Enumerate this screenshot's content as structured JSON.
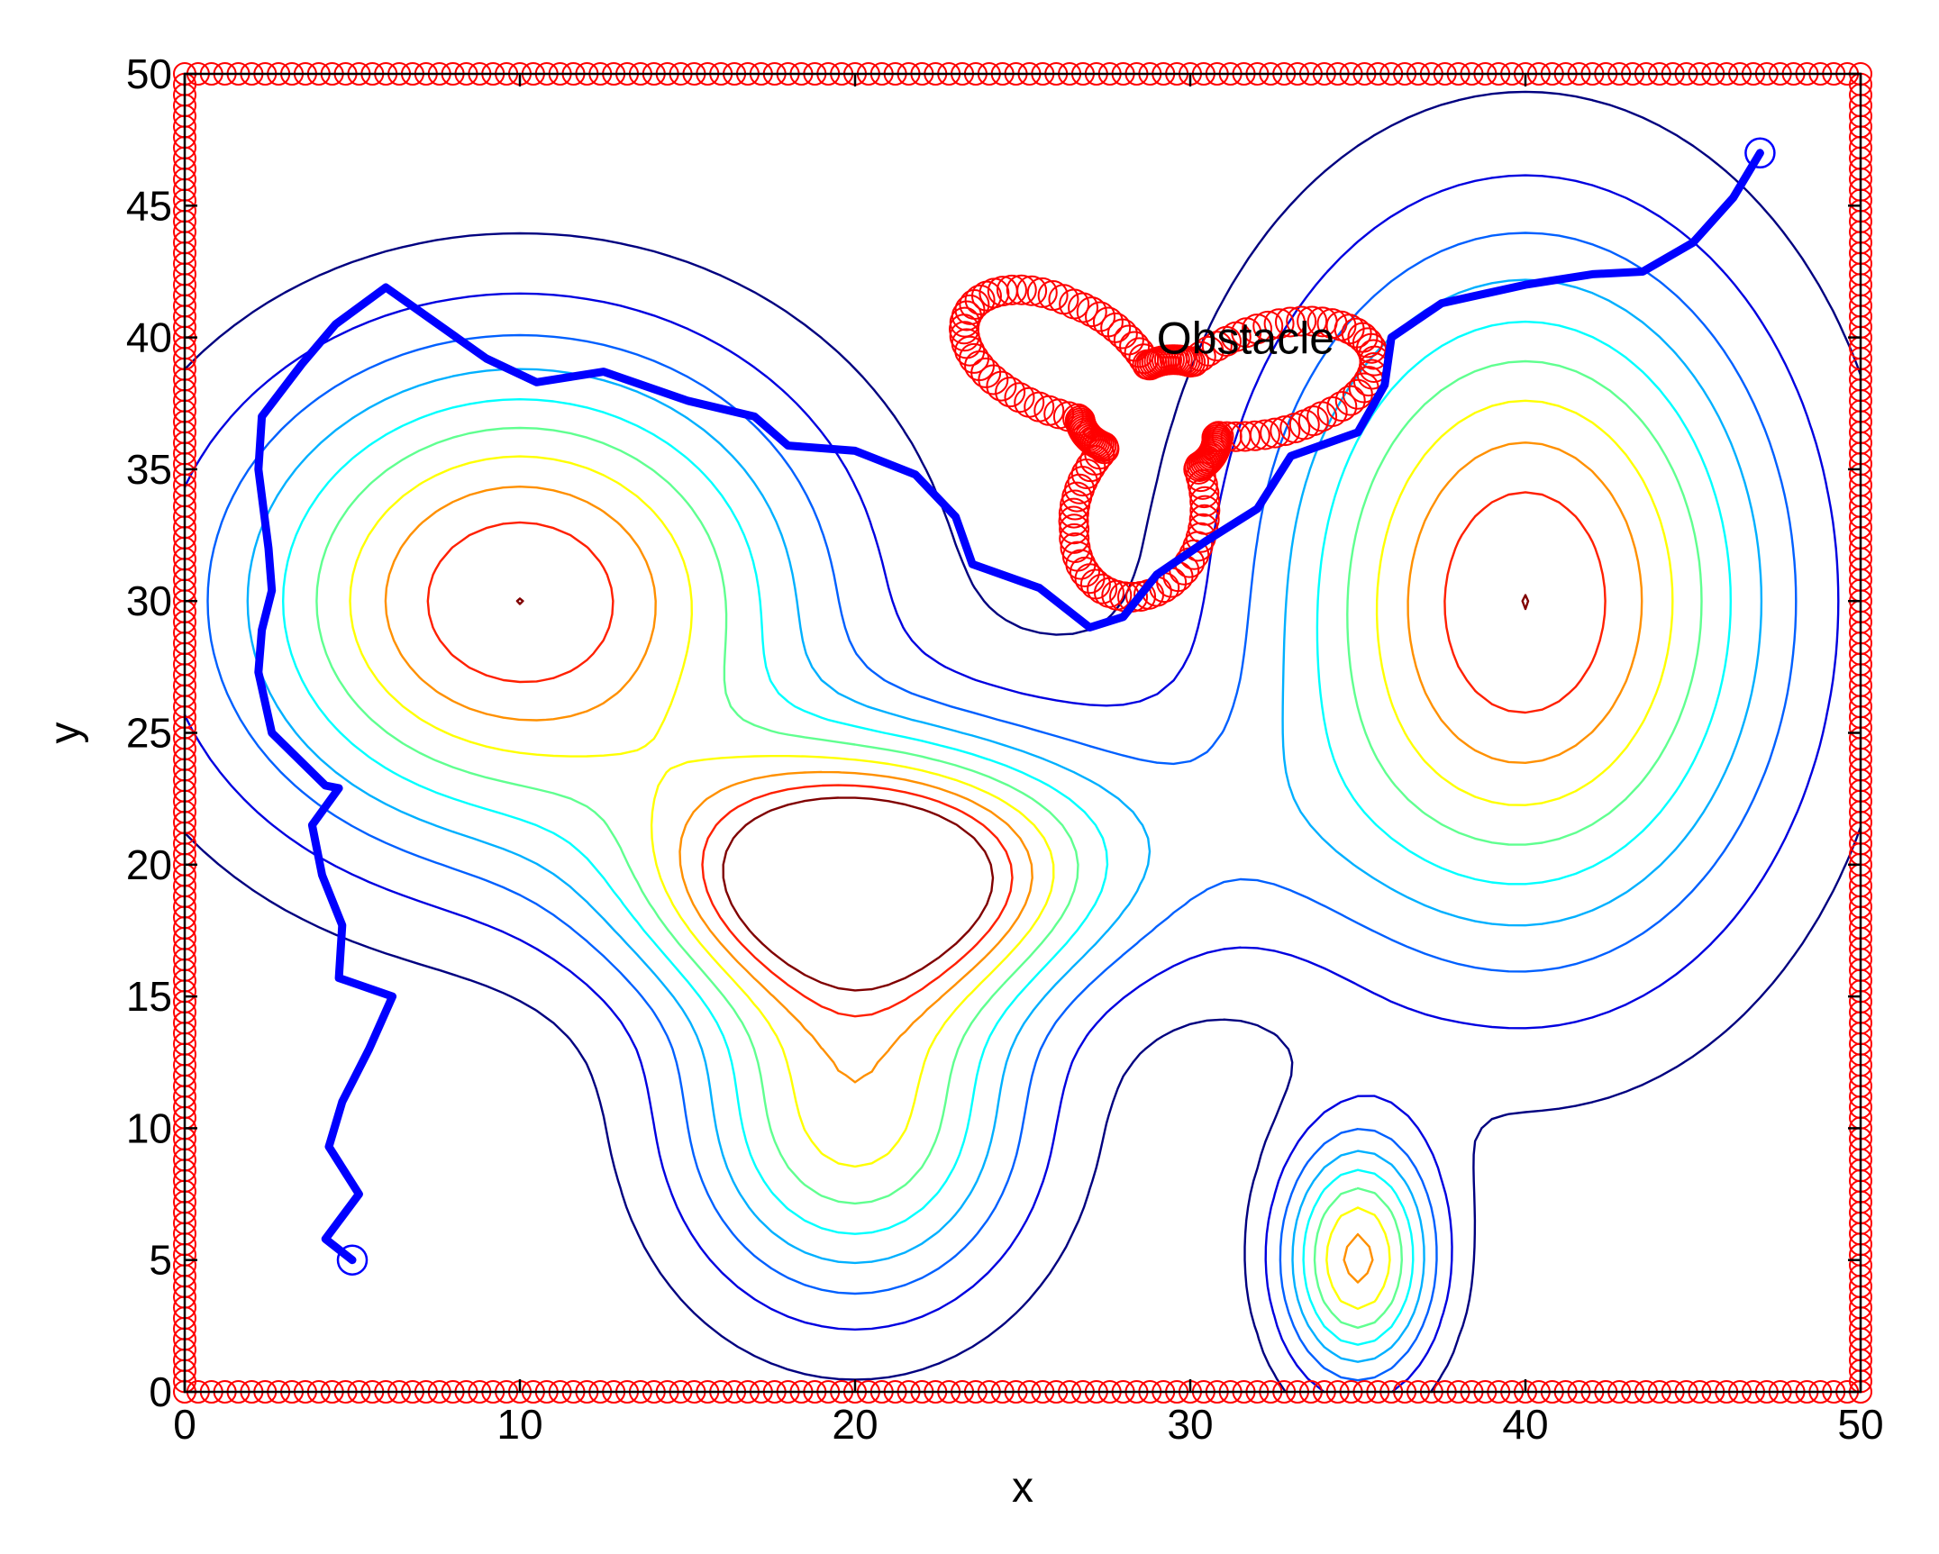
{
  "chart_data": {
    "type": "contour",
    "title": "",
    "xlabel": "x",
    "ylabel": "y",
    "xlim": [
      0,
      50
    ],
    "ylim": [
      0,
      50
    ],
    "xticks": [
      0,
      10,
      20,
      30,
      40,
      50
    ],
    "yticks": [
      0,
      5,
      10,
      15,
      20,
      25,
      30,
      35,
      40,
      45,
      50
    ],
    "grid": false,
    "annotations": [
      {
        "text": "Obstacle",
        "x": 29,
        "y": 40
      }
    ],
    "contour_field": {
      "description_of_peaks": "sum of gaussian bumps",
      "peaks": [
        {
          "cx": 10,
          "cy": 30,
          "sx": 6.0,
          "sy": 6.5,
          "amp": 1.0
        },
        {
          "cx": 20,
          "cy": 19.5,
          "sx": 4.2,
          "sy": 3.2,
          "amp": 1.1
        },
        {
          "cx": 20,
          "cy": 10.5,
          "sx": 3.6,
          "sy": 5.0,
          "amp": 0.75
        },
        {
          "cx": 26,
          "cy": 21,
          "sx": 5.5,
          "sy": 4.0,
          "amp": 0.25
        },
        {
          "cx": 40,
          "cy": 30,
          "sx": 5.2,
          "sy": 9.0,
          "amp": 1.0
        },
        {
          "cx": 35,
          "cy": 5,
          "sx": 1.6,
          "sy": 3.2,
          "amp": 0.82
        }
      ],
      "levels": [
        0.1,
        0.2,
        0.3,
        0.4,
        0.5,
        0.6,
        0.7,
        0.8,
        0.9,
        1.0
      ],
      "level_colors": [
        "#000080",
        "#0000e0",
        "#0060ff",
        "#00b0ff",
        "#00ffff",
        "#60ff90",
        "#ffff00",
        "#ff9000",
        "#ff2000",
        "#800000"
      ]
    },
    "series": [
      {
        "kind": "path",
        "color": "#0000ff",
        "x": [
          5,
          4.2,
          5.2,
          4.3,
          4.7,
          5.5,
          6.2,
          4.6,
          4.7,
          4.1,
          3.8,
          4.6,
          4.2,
          2.6,
          2.2,
          2.3,
          2.6,
          2.5,
          2.2,
          2.3,
          3.5,
          4.5,
          6,
          9,
          10.5,
          12.5,
          15,
          17,
          18,
          20,
          21.8,
          23,
          23.5,
          25.5,
          27,
          28,
          29,
          30.5,
          32,
          33,
          35,
          35.8,
          36,
          37.5,
          40,
          42,
          43.5,
          45,
          46.2,
          47
        ],
        "y": [
          5,
          5.8,
          7.5,
          9.3,
          11,
          13,
          15,
          15.7,
          17.7,
          19.6,
          21.5,
          22.9,
          23,
          25,
          27.3,
          28.9,
          30.4,
          32,
          35,
          37,
          39,
          40.5,
          41.9,
          39.2,
          38.3,
          38.7,
          37.6,
          37,
          35.9,
          35.7,
          34.8,
          33.2,
          31.4,
          30.5,
          29,
          29.4,
          31,
          32.3,
          33.5,
          35.5,
          36.4,
          38.2,
          40,
          41.3,
          42,
          42.4,
          42.5,
          43.6,
          45.3,
          47
        ]
      },
      {
        "kind": "markers",
        "marker": "open-circle",
        "color": "#0000ff",
        "x": [
          5,
          47
        ],
        "y": [
          5,
          47
        ]
      },
      {
        "kind": "markers",
        "marker": "open-circle",
        "color": "#ff0000",
        "name": "boundary",
        "shape": "rectangle",
        "x_range": [
          0,
          50
        ],
        "y_range": [
          0,
          50
        ],
        "step": 0.4
      },
      {
        "kind": "markers",
        "marker": "open-circle",
        "color": "#ff0000",
        "name": "Obstacle",
        "shape": "trefoil",
        "center": [
          29,
          37
        ],
        "base_radius": 2.5,
        "lobe_amplitude": 2.3,
        "lobes": 3,
        "phase_deg": 60
      }
    ]
  },
  "colors": {
    "path": "#0000ff",
    "obstacle": "#ff0000",
    "axes": "#000000"
  }
}
